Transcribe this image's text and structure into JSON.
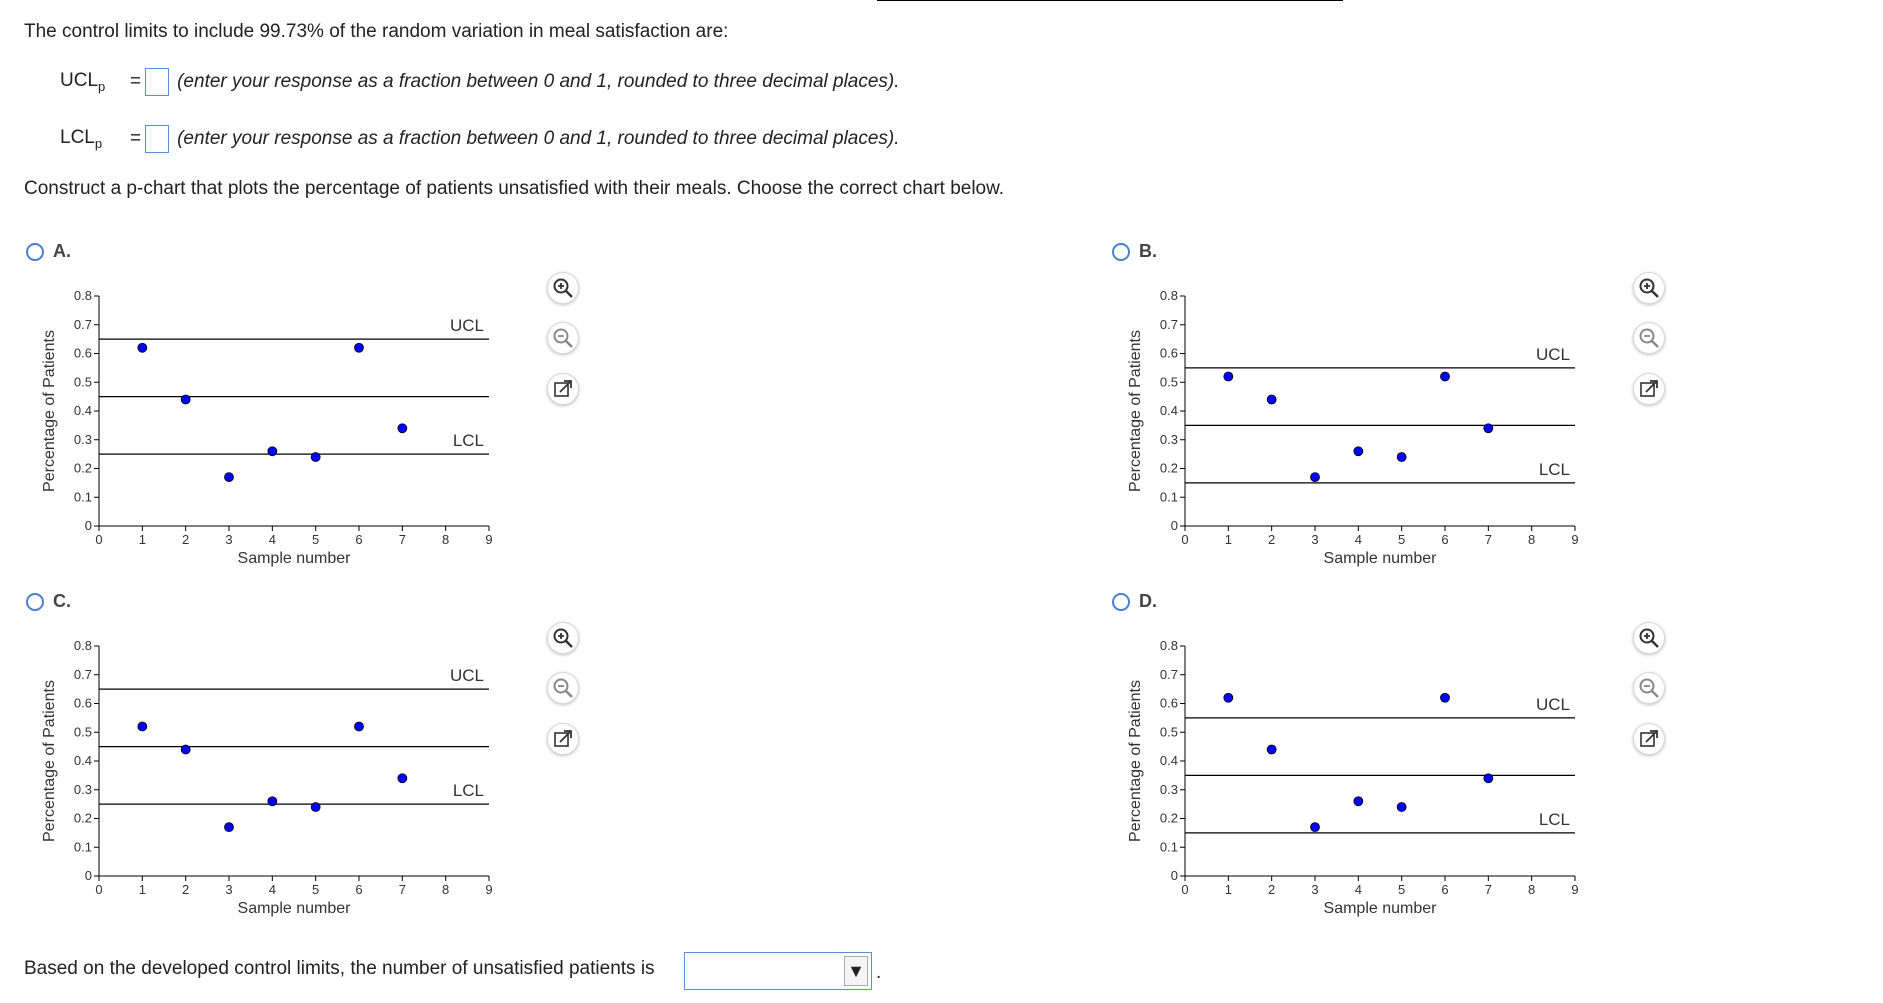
{
  "question": {
    "intro": "The control limits to include 99.73% of the random variation in meal satisfaction are:",
    "ucl": {
      "label": "UCL",
      "sub": "p",
      "equals": "=",
      "instruction": "(enter your response as a fraction between 0 and 1, rounded to three decimal places)."
    },
    "lcl": {
      "label": "LCL",
      "sub": "p",
      "equals": "=",
      "instruction": "(enter your response as a fraction between 0 and 1, rounded to three decimal places)."
    },
    "construct": "Construct a p-chart that plots the percentage of patients unsatisfied with their meals. Choose the correct chart below.",
    "final": "Based on the developed control limits, the number of unsatisfied patients is",
    "final_period": ".",
    "dropdown_value": "",
    "dropdown_arrow": "▼"
  },
  "options": [
    {
      "label": "A."
    },
    {
      "label": "B."
    },
    {
      "label": "C."
    },
    {
      "label": "D."
    }
  ],
  "colors": {
    "point": "#0000ff",
    "radio": "#4a7fd0",
    "input_border": "#5b8fd6"
  },
  "chart_data": [
    {
      "type": "scatter",
      "option": "A",
      "xlabel": "Sample number",
      "ylabel": "Percentage of Patients",
      "xlim": [
        0,
        9
      ],
      "ylim": [
        0,
        0.8
      ],
      "x_ticks": [
        "0",
        "1",
        "2",
        "3",
        "4",
        "5",
        "6",
        "7",
        "8",
        "9"
      ],
      "y_ticks": [
        "0",
        "0.1",
        "0.2",
        "0.3",
        "0.4",
        "0.5",
        "0.6",
        "0.7",
        "0.8"
      ],
      "x": [
        1,
        2,
        3,
        4,
        5,
        6,
        7
      ],
      "values": [
        0.62,
        0.44,
        0.17,
        0.26,
        0.24,
        0.62,
        0.34
      ],
      "ucl": 0.65,
      "center": 0.45,
      "lcl": 0.25,
      "ucl_label": "UCL",
      "lcl_label": "LCL"
    },
    {
      "type": "scatter",
      "option": "B",
      "xlabel": "Sample number",
      "ylabel": "Percentage of Patients",
      "xlim": [
        0,
        9
      ],
      "ylim": [
        0,
        0.8
      ],
      "x_ticks": [
        "0",
        "1",
        "2",
        "3",
        "4",
        "5",
        "6",
        "7",
        "8",
        "9"
      ],
      "y_ticks": [
        "0",
        "0.1",
        "0.2",
        "0.3",
        "0.4",
        "0.5",
        "0.6",
        "0.7",
        "0.8"
      ],
      "x": [
        1,
        2,
        3,
        4,
        5,
        6,
        7
      ],
      "values": [
        0.52,
        0.44,
        0.17,
        0.26,
        0.24,
        0.52,
        0.34
      ],
      "ucl": 0.55,
      "center": 0.35,
      "lcl": 0.15,
      "ucl_label": "UCL",
      "lcl_label": "LCL"
    },
    {
      "type": "scatter",
      "option": "C",
      "xlabel": "Sample number",
      "ylabel": "Percentage of Patients",
      "xlim": [
        0,
        9
      ],
      "ylim": [
        0,
        0.8
      ],
      "x_ticks": [
        "0",
        "1",
        "2",
        "3",
        "4",
        "5",
        "6",
        "7",
        "8",
        "9"
      ],
      "y_ticks": [
        "0",
        "0.1",
        "0.2",
        "0.3",
        "0.4",
        "0.5",
        "0.6",
        "0.7",
        "0.8"
      ],
      "x": [
        1,
        2,
        3,
        4,
        5,
        6,
        7
      ],
      "values": [
        0.52,
        0.44,
        0.17,
        0.26,
        0.24,
        0.52,
        0.34
      ],
      "ucl": 0.65,
      "center": 0.45,
      "lcl": 0.25,
      "ucl_label": "UCL",
      "lcl_label": "LCL"
    },
    {
      "type": "scatter",
      "option": "D",
      "xlabel": "Sample number",
      "ylabel": "Percentage of Patients",
      "xlim": [
        0,
        9
      ],
      "ylim": [
        0,
        0.8
      ],
      "x_ticks": [
        "0",
        "1",
        "2",
        "3",
        "4",
        "5",
        "6",
        "7",
        "8",
        "9"
      ],
      "y_ticks": [
        "0",
        "0.1",
        "0.2",
        "0.3",
        "0.4",
        "0.5",
        "0.6",
        "0.7",
        "0.8"
      ],
      "x": [
        1,
        2,
        3,
        4,
        5,
        6,
        7
      ],
      "values": [
        0.62,
        0.44,
        0.17,
        0.26,
        0.24,
        0.62,
        0.34
      ],
      "ucl": 0.55,
      "center": 0.35,
      "lcl": 0.15,
      "ucl_label": "UCL",
      "lcl_label": "LCL"
    }
  ]
}
